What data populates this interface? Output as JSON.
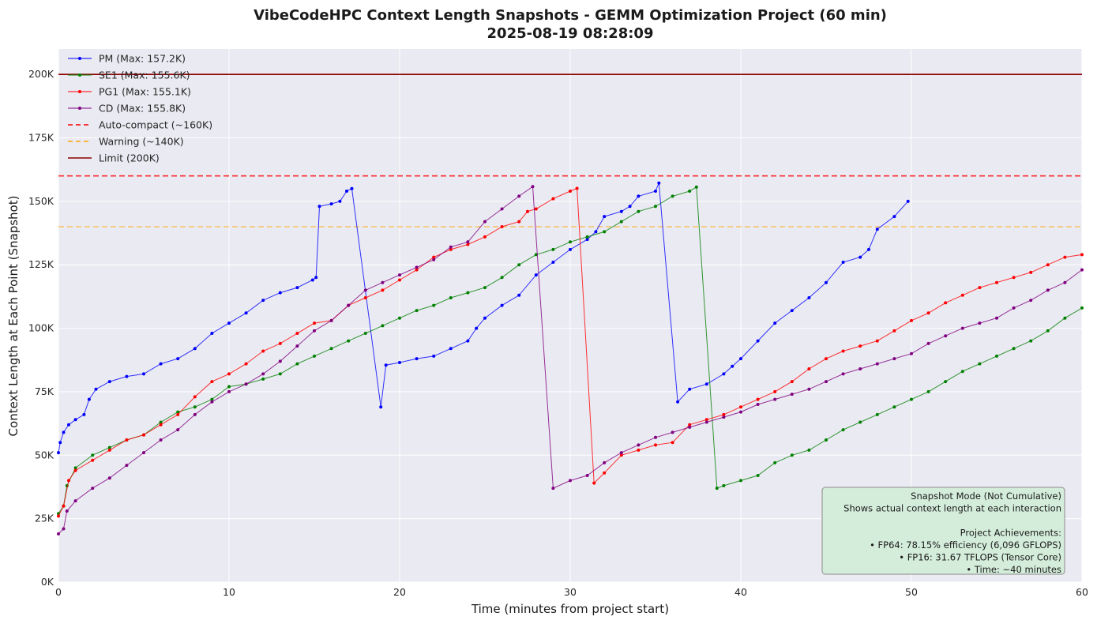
{
  "chart_data": {
    "type": "line",
    "title": "VibeCodeHPC Context Length Snapshots - GEMM Optimization Project (60 min)",
    "subtitle": "2025-08-19 08:28:09",
    "xlabel": "Time (minutes from project start)",
    "ylabel": "Context Length at Each Point (Snapshot)",
    "xlim": [
      0,
      60
    ],
    "ylim": [
      0,
      210000
    ],
    "x_ticks": [
      0,
      10,
      20,
      30,
      40,
      50,
      60
    ],
    "x_tick_labels": [
      "0",
      "10",
      "20",
      "30",
      "40",
      "50",
      "60"
    ],
    "y_ticks": [
      0,
      25000,
      50000,
      75000,
      100000,
      125000,
      150000,
      175000,
      200000
    ],
    "y_tick_labels": [
      "0K",
      "25K",
      "50K",
      "75K",
      "100K",
      "125K",
      "150K",
      "175K",
      "200K"
    ],
    "grid": true,
    "legend_position": "top-left",
    "series": [
      {
        "name": "PM (Max: 157.2K)",
        "color": "#0000ff",
        "points": [
          [
            0,
            51000
          ],
          [
            0.1,
            55000
          ],
          [
            0.3,
            59000
          ],
          [
            0.6,
            62000
          ],
          [
            1,
            64000
          ],
          [
            1.5,
            66000
          ],
          [
            1.8,
            72000
          ],
          [
            2.2,
            76000
          ],
          [
            3,
            79000
          ],
          [
            4,
            81000
          ],
          [
            5,
            82000
          ],
          [
            6,
            86000
          ],
          [
            7,
            88000
          ],
          [
            8,
            92000
          ],
          [
            9,
            98000
          ],
          [
            10,
            102000
          ],
          [
            11,
            106000
          ],
          [
            12,
            111000
          ],
          [
            13,
            114000
          ],
          [
            14,
            116000
          ],
          [
            14.9,
            119000
          ],
          [
            15.1,
            120000
          ],
          [
            15.3,
            148000
          ],
          [
            16,
            149000
          ],
          [
            16.5,
            150000
          ],
          [
            16.9,
            154000
          ],
          [
            17.2,
            155000
          ],
          [
            18.9,
            69000
          ],
          [
            19.2,
            85500
          ],
          [
            20,
            86500
          ],
          [
            21,
            88000
          ],
          [
            22,
            89000
          ],
          [
            23,
            92000
          ],
          [
            24,
            95000
          ],
          [
            24.5,
            100000
          ],
          [
            25,
            104000
          ],
          [
            26,
            109000
          ],
          [
            27,
            113000
          ],
          [
            28,
            121000
          ],
          [
            29,
            126000
          ],
          [
            30,
            131000
          ],
          [
            31,
            135000
          ],
          [
            31.5,
            138000
          ],
          [
            32,
            144000
          ],
          [
            33,
            146000
          ],
          [
            33.5,
            148000
          ],
          [
            34,
            152000
          ],
          [
            35,
            154000
          ],
          [
            35.2,
            157200
          ],
          [
            36.3,
            71000
          ],
          [
            37,
            76000
          ],
          [
            38,
            78000
          ],
          [
            39,
            82000
          ],
          [
            39.5,
            85000
          ],
          [
            40,
            88000
          ],
          [
            41,
            95000
          ],
          [
            42,
            102000
          ],
          [
            43,
            107000
          ],
          [
            44,
            112000
          ],
          [
            45,
            118000
          ],
          [
            46,
            126000
          ],
          [
            47,
            128000
          ],
          [
            47.5,
            131000
          ],
          [
            48,
            139000
          ],
          [
            49,
            144000
          ],
          [
            49.8,
            150000
          ]
        ]
      },
      {
        "name": "SE1 (Max: 155.6K)",
        "color": "#008000",
        "points": [
          [
            0,
            27000
          ],
          [
            0.3,
            30000
          ],
          [
            0.5,
            38000
          ],
          [
            1,
            45000
          ],
          [
            2,
            50000
          ],
          [
            3,
            53000
          ],
          [
            4,
            56000
          ],
          [
            5,
            58000
          ],
          [
            6,
            63000
          ],
          [
            7,
            67000
          ],
          [
            8,
            69000
          ],
          [
            9,
            72000
          ],
          [
            10,
            77000
          ],
          [
            11,
            78000
          ],
          [
            12,
            80000
          ],
          [
            13,
            82000
          ],
          [
            14,
            86000
          ],
          [
            15,
            89000
          ],
          [
            16,
            92000
          ],
          [
            17,
            95000
          ],
          [
            18,
            98000
          ],
          [
            19,
            101000
          ],
          [
            20,
            104000
          ],
          [
            21,
            107000
          ],
          [
            22,
            109000
          ],
          [
            23,
            112000
          ],
          [
            24,
            114000
          ],
          [
            25,
            116000
          ],
          [
            26,
            120000
          ],
          [
            27,
            125000
          ],
          [
            28,
            129000
          ],
          [
            29,
            131000
          ],
          [
            30,
            134000
          ],
          [
            31,
            136000
          ],
          [
            32,
            138000
          ],
          [
            33,
            142000
          ],
          [
            34,
            146000
          ],
          [
            35,
            148000
          ],
          [
            36,
            152000
          ],
          [
            37,
            154000
          ],
          [
            37.4,
            155600
          ],
          [
            38.6,
            37000
          ],
          [
            39,
            38000
          ],
          [
            40,
            40000
          ],
          [
            41,
            42000
          ],
          [
            42,
            47000
          ],
          [
            43,
            50000
          ],
          [
            44,
            52000
          ],
          [
            45,
            56000
          ],
          [
            46,
            60000
          ],
          [
            47,
            63000
          ],
          [
            48,
            66000
          ],
          [
            49,
            69000
          ],
          [
            50,
            72000
          ],
          [
            51,
            75000
          ],
          [
            52,
            79000
          ],
          [
            53,
            83000
          ],
          [
            54,
            86000
          ],
          [
            55,
            89000
          ],
          [
            56,
            92000
          ],
          [
            57,
            95000
          ],
          [
            58,
            99000
          ],
          [
            59,
            104000
          ],
          [
            60,
            108000
          ]
        ]
      },
      {
        "name": "PG1 (Max: 155.1K)",
        "color": "#ff0000",
        "points": [
          [
            0,
            26000
          ],
          [
            0.3,
            30000
          ],
          [
            0.6,
            40000
          ],
          [
            1,
            44000
          ],
          [
            2,
            48000
          ],
          [
            3,
            52000
          ],
          [
            4,
            56000
          ],
          [
            5,
            58000
          ],
          [
            6,
            62000
          ],
          [
            7,
            66000
          ],
          [
            8,
            73000
          ],
          [
            9,
            79000
          ],
          [
            10,
            82000
          ],
          [
            11,
            86000
          ],
          [
            12,
            91000
          ],
          [
            13,
            94000
          ],
          [
            14,
            98000
          ],
          [
            15,
            102000
          ],
          [
            16,
            103000
          ],
          [
            17,
            109000
          ],
          [
            18,
            112000
          ],
          [
            19,
            115000
          ],
          [
            20,
            119000
          ],
          [
            21,
            123000
          ],
          [
            22,
            128000
          ],
          [
            23,
            131000
          ],
          [
            24,
            133000
          ],
          [
            25,
            136000
          ],
          [
            26,
            140000
          ],
          [
            27,
            142000
          ],
          [
            27.5,
            146000
          ],
          [
            28,
            147000
          ],
          [
            29,
            151000
          ],
          [
            30,
            154000
          ],
          [
            30.4,
            155100
          ],
          [
            31.4,
            39000
          ],
          [
            32,
            43000
          ],
          [
            33,
            50000
          ],
          [
            34,
            52000
          ],
          [
            35,
            54000
          ],
          [
            36,
            55000
          ],
          [
            37,
            62000
          ],
          [
            38,
            64000
          ],
          [
            39,
            66000
          ],
          [
            40,
            69000
          ],
          [
            41,
            72000
          ],
          [
            42,
            75000
          ],
          [
            43,
            79000
          ],
          [
            44,
            84000
          ],
          [
            45,
            88000
          ],
          [
            46,
            91000
          ],
          [
            47,
            93000
          ],
          [
            48,
            95000
          ],
          [
            49,
            99000
          ],
          [
            50,
            103000
          ],
          [
            51,
            106000
          ],
          [
            52,
            110000
          ],
          [
            53,
            113000
          ],
          [
            54,
            116000
          ],
          [
            55,
            118000
          ],
          [
            56,
            120000
          ],
          [
            57,
            122000
          ],
          [
            58,
            125000
          ],
          [
            59,
            128000
          ],
          [
            60,
            129000
          ]
        ]
      },
      {
        "name": "CD (Max: 155.8K)",
        "color": "#800080",
        "points": [
          [
            0,
            19000
          ],
          [
            0.3,
            21000
          ],
          [
            0.5,
            28000
          ],
          [
            1,
            32000
          ],
          [
            2,
            37000
          ],
          [
            3,
            41000
          ],
          [
            4,
            46000
          ],
          [
            5,
            51000
          ],
          [
            6,
            56000
          ],
          [
            7,
            60000
          ],
          [
            8,
            66000
          ],
          [
            9,
            71000
          ],
          [
            10,
            75000
          ],
          [
            11,
            78000
          ],
          [
            12,
            82000
          ],
          [
            13,
            87000
          ],
          [
            14,
            93000
          ],
          [
            15,
            99000
          ],
          [
            16,
            103000
          ],
          [
            17,
            109000
          ],
          [
            18,
            115000
          ],
          [
            19,
            118000
          ],
          [
            20,
            121000
          ],
          [
            21,
            124000
          ],
          [
            22,
            127000
          ],
          [
            23,
            132000
          ],
          [
            24,
            134000
          ],
          [
            25,
            142000
          ],
          [
            26,
            147000
          ],
          [
            27,
            152000
          ],
          [
            27.8,
            155800
          ],
          [
            29,
            37000
          ],
          [
            30,
            40000
          ],
          [
            31,
            42000
          ],
          [
            32,
            47000
          ],
          [
            33,
            51000
          ],
          [
            34,
            54000
          ],
          [
            35,
            57000
          ],
          [
            36,
            59000
          ],
          [
            37,
            61000
          ],
          [
            38,
            63000
          ],
          [
            39,
            65000
          ],
          [
            40,
            67000
          ],
          [
            41,
            70000
          ],
          [
            42,
            72000
          ],
          [
            43,
            74000
          ],
          [
            44,
            76000
          ],
          [
            45,
            79000
          ],
          [
            46,
            82000
          ],
          [
            47,
            84000
          ],
          [
            48,
            86000
          ],
          [
            49,
            88000
          ],
          [
            50,
            90000
          ],
          [
            51,
            94000
          ],
          [
            52,
            97000
          ],
          [
            53,
            100000
          ],
          [
            54,
            102000
          ],
          [
            55,
            104000
          ],
          [
            56,
            108000
          ],
          [
            57,
            111000
          ],
          [
            58,
            115000
          ],
          [
            59,
            118000
          ],
          [
            60,
            123000
          ]
        ]
      }
    ],
    "reference_lines": [
      {
        "name": "Auto-compact (~160K)",
        "value": 160000,
        "color": "#ff0000",
        "style": "dashed"
      },
      {
        "name": "Warning (~140K)",
        "value": 140000,
        "color": "#ffa500",
        "style": "dashed"
      },
      {
        "name": "Limit (200K)",
        "value": 200000,
        "color": "#8b0000",
        "style": "solid"
      }
    ],
    "annotation": {
      "lines": [
        "Snapshot Mode (Not Cumulative)",
        "Shows actual context length at each interaction",
        "",
        "Project Achievements:",
        "• FP64: 78.15% efficiency (6,096 GFLOPS)",
        "• FP16: 31.67 TFLOPS (Tensor Core)",
        "• Time: ~40 minutes"
      ],
      "background": "#d4edda"
    }
  }
}
